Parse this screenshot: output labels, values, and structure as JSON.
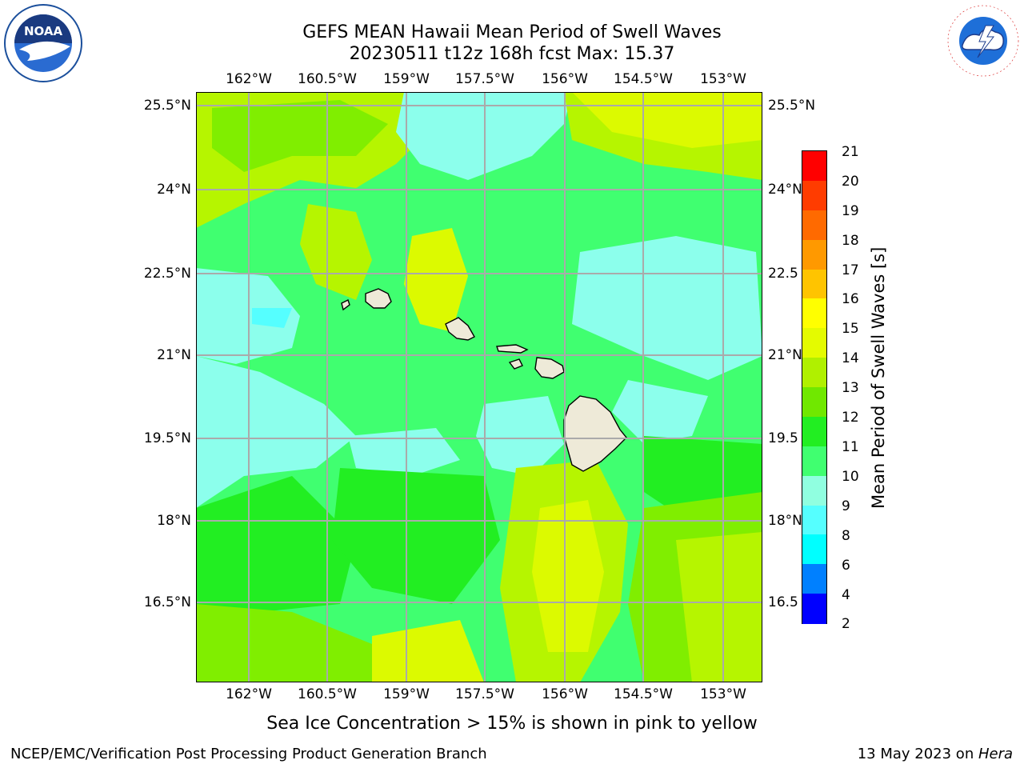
{
  "title": {
    "line1": "GEFS MEAN Hawaii Mean Period of Swell Waves",
    "line2": "20230511 t12z 168h fcst   Max: 15.37"
  },
  "logos": {
    "left": "NOAA",
    "right": "NATIONAL WEATHER SERVICE"
  },
  "map": {
    "lon_ticks": [
      "162°W",
      "160.5°W",
      "159°W",
      "157.5°W",
      "156°W",
      "154.5°W",
      "153°W"
    ],
    "lat_ticks": [
      "25.5°N",
      "24°N",
      "22.5°N",
      "21°N",
      "19.5°N",
      "18°N",
      "16.5°N"
    ],
    "lat_ticks_right": [
      "25.5°N",
      "24°N",
      "22.5",
      "21°N",
      "19.5",
      "18°N",
      "16.5"
    ],
    "field_colors": {
      "lightcyan": "#8cffec",
      "green10": "#40ff70",
      "green11": "#22ee22",
      "yellowgreen12": "#80ee00",
      "lime13": "#b6f500",
      "yellow14": "#dcfa00",
      "yellow15": "#f6ff00",
      "cyan8": "#55ffff",
      "land": "#eeead8"
    }
  },
  "colorbar": {
    "label": "Mean Period of Swell Waves [s]",
    "ticks": [
      "21",
      "20",
      "19",
      "18",
      "17",
      "16",
      "15",
      "14",
      "13",
      "12",
      "11",
      "10",
      "9",
      "8",
      "6",
      "4",
      "2"
    ],
    "colors": [
      "#ff0000",
      "#ff3c00",
      "#ff6a00",
      "#ff9900",
      "#ffc400",
      "#ffff00",
      "#e4fb00",
      "#b0f000",
      "#70e800",
      "#22ee22",
      "#40ff70",
      "#90ffe0",
      "#55ffff",
      "#00ffff",
      "#0080ff",
      "#0000ff"
    ]
  },
  "caption": "Sea Ice Concentration > 15% is shown in pink to yellow",
  "footer": {
    "left": "NCEP/EMC/Verification Post Processing Product Generation Branch",
    "date": "13 May 2023 on ",
    "host": "Hera"
  }
}
